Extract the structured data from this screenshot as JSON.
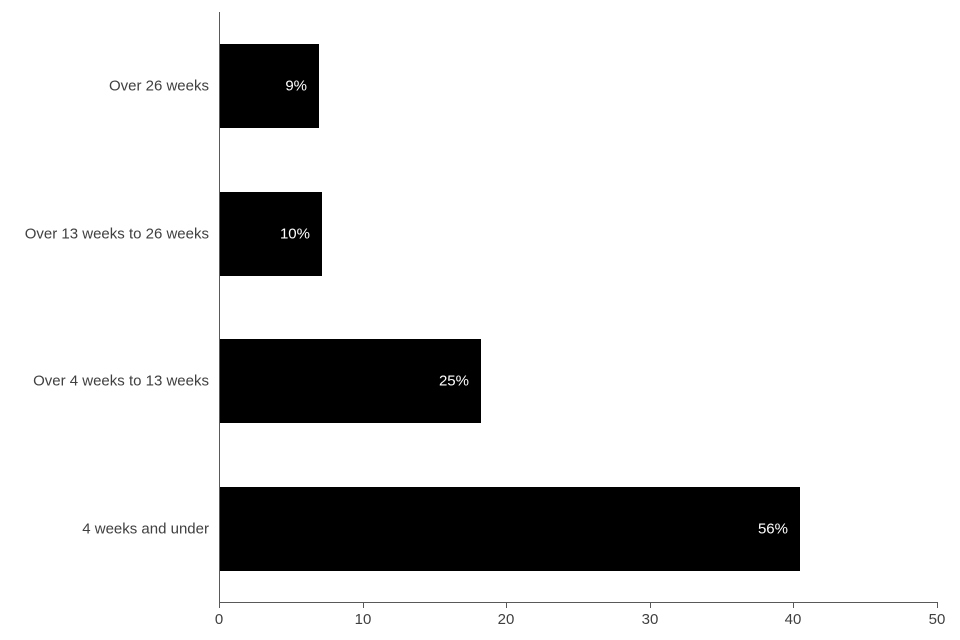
{
  "page": {
    "background_color": "#ffffff"
  },
  "chart_data": {
    "type": "bar",
    "orientation": "horizontal",
    "categories": [
      "Over 26 weeks",
      "Over 13 weeks to 26 weeks",
      "Over 4 weeks to 13 weeks",
      "4 weeks and under"
    ],
    "values": [
      6.9,
      7.1,
      18.2,
      40.4
    ],
    "data_labels": [
      "9%",
      "10%",
      "25%",
      "56%"
    ],
    "xlim": [
      0,
      50
    ],
    "xticks": [
      0,
      10,
      20,
      30,
      40,
      50
    ],
    "grid": false,
    "legend": false,
    "colors": {
      "bar_fill": "#000000",
      "bar_label_text": "#ffffff",
      "axis_line": "#595959",
      "tick_text": "#404040",
      "category_text": "#404040"
    }
  }
}
